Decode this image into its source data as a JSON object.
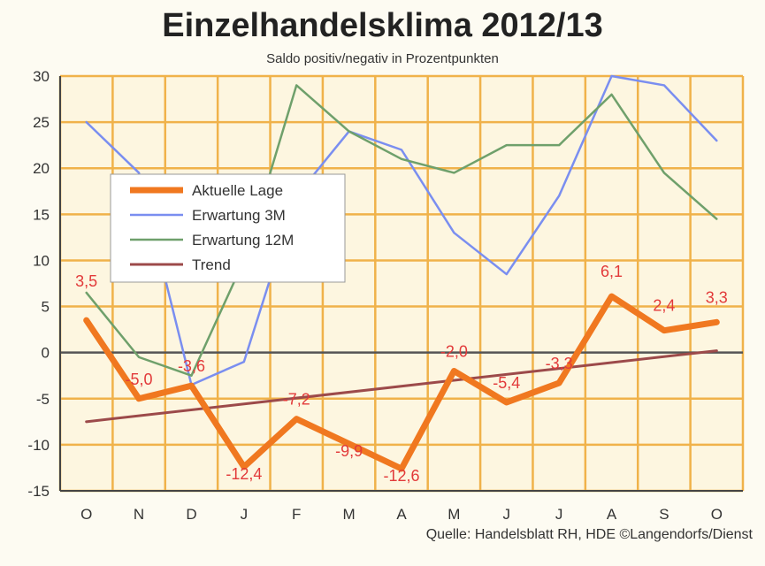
{
  "chart_data": {
    "type": "line",
    "title": "Einzelhandelsklima 2012/13",
    "subtitle": "Saldo positiv/negativ in Prozentpunkten",
    "source": "Quelle: Handelsblatt RH, HDE ©Langendorfs/Dienst",
    "categories": [
      "O",
      "N",
      "D",
      "J",
      "F",
      "M",
      "A",
      "M",
      "J",
      "J",
      "A",
      "S",
      "O"
    ],
    "ylim": [
      -15,
      30
    ],
    "yticks": [
      -15,
      -10,
      -5,
      0,
      5,
      10,
      15,
      20,
      25,
      30
    ],
    "grid": true,
    "legend_position": "left-center",
    "series": [
      {
        "name": "Aktuelle Lage",
        "color": "#f07820",
        "values": [
          3.5,
          -5.0,
          -3.6,
          -12.4,
          -7.2,
          -9.9,
          -12.6,
          -2.0,
          -5.4,
          -3.3,
          6.1,
          2.4,
          3.3
        ],
        "labels": [
          "3,5",
          "-5,0",
          "-3,6",
          "-12,4",
          "-7,2",
          "-9,9",
          "-12,6",
          "-2,0",
          "-5,4",
          "-3,3",
          "6,1",
          "2,4",
          "3,3"
        ]
      },
      {
        "name": "Erwartung 3M",
        "color": "#7a8ef0",
        "values": [
          25,
          19.5,
          -3.5,
          -1,
          17,
          24,
          22,
          13,
          8.5,
          17,
          30,
          29,
          23
        ]
      },
      {
        "name": "Erwartung 12M",
        "color": "#6fa06b",
        "values": [
          6.5,
          -0.5,
          -2.5,
          10,
          29,
          24,
          21,
          19.5,
          22.5,
          22.5,
          28,
          19.5,
          14.5
        ]
      },
      {
        "name": "Trend",
        "color": "#9c4a4a",
        "values": [
          -7.5,
          -6.8,
          -6.1,
          -5.5,
          -4.9,
          -4.2,
          -3.6,
          -2.9,
          -2.3,
          -1.7,
          -1.0,
          -0.4,
          0.2
        ]
      }
    ]
  }
}
